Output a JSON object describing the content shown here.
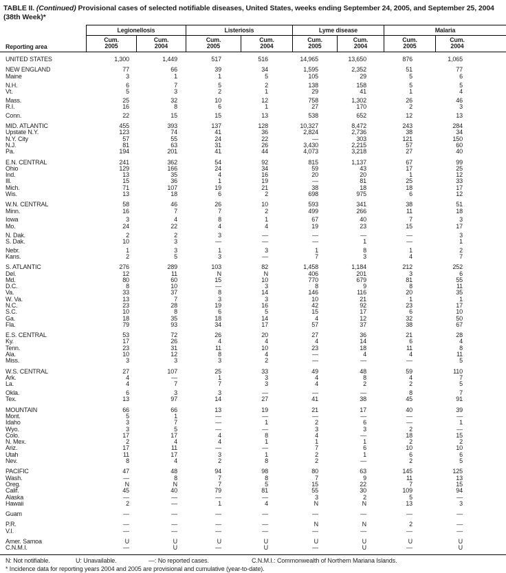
{
  "title": {
    "prefix": "TABLE II.",
    "continued": "(Continued)",
    "rest": "Provisional cases of selected notifiable diseases, United States, weeks ending September 24, 2005, and September 25, 2004 (38th Week)*"
  },
  "columns": {
    "reporting_area": "Reporting area",
    "groups": [
      {
        "label": "Legionellosis"
      },
      {
        "label": "Listeriosis"
      },
      {
        "label": "Lyme disease"
      },
      {
        "label": "Malaria"
      }
    ],
    "subs": [
      {
        "line1": "Cum.",
        "line2": "2005"
      },
      {
        "line1": "Cum.",
        "line2": "2004"
      },
      {
        "line1": "Cum.",
        "line2": "2005"
      },
      {
        "line1": "Cum.",
        "line2": "2004"
      },
      {
        "line1": "Cum.",
        "line2": "2005"
      },
      {
        "line1": "Cum.",
        "line2": "2004"
      },
      {
        "line1": "Cum.",
        "line2": "2005"
      },
      {
        "line1": "Cum.",
        "line2": "2004"
      }
    ]
  },
  "sections": [
    {
      "rows": [
        {
          "label": "UNITED STATES",
          "values": [
            "1,300",
            "1,449",
            "517",
            "516",
            "14,965",
            "13,650",
            "876",
            "1,065"
          ]
        }
      ]
    },
    {
      "rows": [
        {
          "label": "NEW ENGLAND",
          "values": [
            "77",
            "66",
            "39",
            "34",
            "1,595",
            "2,352",
            "51",
            "77"
          ]
        },
        {
          "label": "Maine",
          "values": [
            "3",
            "1",
            "1",
            "5",
            "105",
            "29",
            "5",
            "6"
          ]
        },
        {
          "label": "N.H.",
          "gap": true,
          "values": [
            "6",
            "7",
            "5",
            "2",
            "138",
            "158",
            "5",
            "5"
          ]
        },
        {
          "label": "Vt.",
          "values": [
            "5",
            "3",
            "2",
            "1",
            "29",
            "41",
            "1",
            "4"
          ]
        },
        {
          "label": "Mass.",
          "gap": true,
          "values": [
            "25",
            "32",
            "10",
            "12",
            "758",
            "1,302",
            "26",
            "46"
          ]
        },
        {
          "label": "R.I.",
          "values": [
            "16",
            "8",
            "6",
            "1",
            "27",
            "170",
            "2",
            "3"
          ]
        },
        {
          "label": "Conn.",
          "gap": true,
          "values": [
            "22",
            "15",
            "15",
            "13",
            "538",
            "652",
            "12",
            "13"
          ]
        }
      ]
    },
    {
      "rows": [
        {
          "label": "MID. ATLANTIC",
          "values": [
            "455",
            "393",
            "137",
            "128",
            "10,327",
            "8,472",
            "243",
            "284"
          ]
        },
        {
          "label": "Upstate N.Y.",
          "values": [
            "123",
            "74",
            "41",
            "36",
            "2,824",
            "2,736",
            "38",
            "34"
          ]
        },
        {
          "label": "N.Y. City",
          "values": [
            "57",
            "55",
            "24",
            "22",
            "—",
            "303",
            "121",
            "150"
          ]
        },
        {
          "label": "N.J.",
          "values": [
            "81",
            "63",
            "31",
            "26",
            "3,430",
            "2,215",
            "57",
            "60"
          ]
        },
        {
          "label": "Pa.",
          "values": [
            "194",
            "201",
            "41",
            "44",
            "4,073",
            "3,218",
            "27",
            "40"
          ]
        }
      ]
    },
    {
      "rows": [
        {
          "label": "E.N. CENTRAL",
          "values": [
            "241",
            "362",
            "54",
            "92",
            "815",
            "1,137",
            "67",
            "99"
          ]
        },
        {
          "label": "Ohio",
          "values": [
            "129",
            "166",
            "24",
            "34",
            "59",
            "43",
            "17",
            "25"
          ]
        },
        {
          "label": "Ind.",
          "values": [
            "13",
            "35",
            "4",
            "16",
            "20",
            "20",
            "1",
            "12"
          ]
        },
        {
          "label": "Ill.",
          "values": [
            "15",
            "36",
            "1",
            "19",
            "—",
            "81",
            "25",
            "33"
          ]
        },
        {
          "label": "Mich.",
          "values": [
            "71",
            "107",
            "19",
            "21",
            "38",
            "18",
            "18",
            "17"
          ]
        },
        {
          "label": "Wis.",
          "values": [
            "13",
            "18",
            "6",
            "2",
            "698",
            "975",
            "6",
            "12"
          ]
        }
      ]
    },
    {
      "rows": [
        {
          "label": "W.N. CENTRAL",
          "values": [
            "58",
            "46",
            "26",
            "10",
            "593",
            "341",
            "38",
            "51"
          ]
        },
        {
          "label": "Minn.",
          "values": [
            "16",
            "7",
            "7",
            "2",
            "499",
            "266",
            "11",
            "18"
          ]
        },
        {
          "label": "Iowa",
          "gap": true,
          "values": [
            "3",
            "4",
            "8",
            "1",
            "67",
            "40",
            "7",
            "3"
          ]
        },
        {
          "label": "Mo.",
          "values": [
            "24",
            "22",
            "4",
            "4",
            "19",
            "23",
            "15",
            "17"
          ]
        },
        {
          "label": "N. Dak.",
          "gap": true,
          "values": [
            "2",
            "2",
            "3",
            "—",
            "—",
            "—",
            "—",
            "3"
          ]
        },
        {
          "label": "S. Dak.",
          "values": [
            "10",
            "3",
            "—",
            "—",
            "—",
            "1",
            "—",
            "1"
          ]
        },
        {
          "label": "Nebr.",
          "gap": true,
          "values": [
            "1",
            "3",
            "1",
            "3",
            "1",
            "8",
            "1",
            "2"
          ]
        },
        {
          "label": "Kans.",
          "values": [
            "2",
            "5",
            "3",
            "—",
            "7",
            "3",
            "4",
            "7"
          ]
        }
      ]
    },
    {
      "rows": [
        {
          "label": "S. ATLANTIC",
          "values": [
            "276",
            "289",
            "103",
            "82",
            "1,458",
            "1,184",
            "212",
            "252"
          ]
        },
        {
          "label": "Del.",
          "values": [
            "12",
            "11",
            "N",
            "N",
            "406",
            "201",
            "3",
            "6"
          ]
        },
        {
          "label": "Md.",
          "values": [
            "80",
            "60",
            "15",
            "10",
            "770",
            "679",
            "81",
            "55"
          ]
        },
        {
          "label": "D.C.",
          "values": [
            "8",
            "10",
            "—",
            "3",
            "8",
            "9",
            "8",
            "11"
          ]
        },
        {
          "label": "Va.",
          "values": [
            "33",
            "37",
            "8",
            "14",
            "146",
            "116",
            "20",
            "35"
          ]
        },
        {
          "label": "W. Va.",
          "values": [
            "13",
            "7",
            "3",
            "3",
            "10",
            "21",
            "1",
            "1"
          ]
        },
        {
          "label": "N.C.",
          "values": [
            "23",
            "28",
            "19",
            "16",
            "42",
            "92",
            "23",
            "17"
          ]
        },
        {
          "label": "S.C.",
          "values": [
            "10",
            "8",
            "6",
            "5",
            "15",
            "17",
            "6",
            "10"
          ]
        },
        {
          "label": "Ga.",
          "values": [
            "18",
            "35",
            "18",
            "14",
            "4",
            "12",
            "32",
            "50"
          ]
        },
        {
          "label": "Fla.",
          "values": [
            "79",
            "93",
            "34",
            "17",
            "57",
            "37",
            "38",
            "67"
          ]
        }
      ]
    },
    {
      "rows": [
        {
          "label": "E.S. CENTRAL",
          "values": [
            "53",
            "72",
            "26",
            "20",
            "27",
            "36",
            "21",
            "28"
          ]
        },
        {
          "label": "Ky.",
          "values": [
            "17",
            "26",
            "4",
            "4",
            "4",
            "14",
            "6",
            "4"
          ]
        },
        {
          "label": "Tenn.",
          "values": [
            "23",
            "31",
            "11",
            "10",
            "23",
            "18",
            "11",
            "8"
          ]
        },
        {
          "label": "Ala.",
          "values": [
            "10",
            "12",
            "8",
            "4",
            "—",
            "4",
            "4",
            "11"
          ]
        },
        {
          "label": "Miss.",
          "values": [
            "3",
            "3",
            "3",
            "2",
            "—",
            "—",
            "—",
            "5"
          ]
        }
      ]
    },
    {
      "rows": [
        {
          "label": "W.S. CENTRAL",
          "values": [
            "27",
            "107",
            "25",
            "33",
            "49",
            "48",
            "59",
            "110"
          ]
        },
        {
          "label": "Ark.",
          "values": [
            "4",
            "—",
            "1",
            "3",
            "4",
            "8",
            "4",
            "7"
          ]
        },
        {
          "label": "La.",
          "values": [
            "4",
            "7",
            "7",
            "3",
            "4",
            "2",
            "2",
            "5"
          ]
        },
        {
          "label": "Okla.",
          "gap": true,
          "values": [
            "6",
            "3",
            "3",
            "—",
            "—",
            "—",
            "8",
            "7"
          ]
        },
        {
          "label": "Tex.",
          "values": [
            "13",
            "97",
            "14",
            "27",
            "41",
            "38",
            "45",
            "91"
          ]
        }
      ]
    },
    {
      "rows": [
        {
          "label": "MOUNTAIN",
          "values": [
            "66",
            "66",
            "13",
            "19",
            "21",
            "17",
            "40",
            "39"
          ]
        },
        {
          "label": "Mont.",
          "values": [
            "5",
            "1",
            "—",
            "—",
            "—",
            "—",
            "—",
            "—"
          ]
        },
        {
          "label": "Idaho",
          "values": [
            "3",
            "7",
            "—",
            "1",
            "2",
            "6",
            "—",
            "1"
          ]
        },
        {
          "label": "Wyo.",
          "values": [
            "3",
            "5",
            "—",
            "—",
            "3",
            "3",
            "2",
            "—"
          ]
        },
        {
          "label": "Colo.",
          "values": [
            "17",
            "17",
            "4",
            "8",
            "4",
            "—",
            "18",
            "15"
          ]
        },
        {
          "label": "N. Mex.",
          "values": [
            "2",
            "4",
            "4",
            "1",
            "1",
            "1",
            "2",
            "2"
          ]
        },
        {
          "label": "Ariz.",
          "values": [
            "17",
            "11",
            "—",
            "—",
            "7",
            "6",
            "10",
            "10"
          ]
        },
        {
          "label": "Utah",
          "values": [
            "11",
            "17",
            "3",
            "1",
            "2",
            "1",
            "6",
            "6"
          ]
        },
        {
          "label": "Nev.",
          "values": [
            "8",
            "4",
            "2",
            "8",
            "2",
            "—",
            "2",
            "5"
          ]
        }
      ]
    },
    {
      "rows": [
        {
          "label": "PACIFIC",
          "values": [
            "47",
            "48",
            "94",
            "98",
            "80",
            "63",
            "145",
            "125"
          ]
        },
        {
          "label": "Wash.",
          "values": [
            "—",
            "8",
            "7",
            "8",
            "7",
            "9",
            "11",
            "13"
          ]
        },
        {
          "label": "Oreg.",
          "values": [
            "N",
            "N",
            "7",
            "5",
            "15",
            "22",
            "7",
            "15"
          ]
        },
        {
          "label": "Calif.",
          "values": [
            "45",
            "40",
            "79",
            "81",
            "55",
            "30",
            "109",
            "94"
          ]
        },
        {
          "label": "Alaska",
          "values": [
            "—",
            "—",
            "—",
            "—",
            "3",
            "2",
            "5",
            "—"
          ]
        },
        {
          "label": "Hawaii",
          "values": [
            "2",
            "—",
            "1",
            "4",
            "N",
            "N",
            "13",
            "3"
          ]
        }
      ]
    },
    {
      "rows": [
        {
          "label": "Guam",
          "values": [
            "—",
            "—",
            "—",
            "—",
            "—",
            "—",
            "—",
            "—"
          ]
        }
      ]
    },
    {
      "rows": [
        {
          "label": "P.R.",
          "values": [
            "—",
            "—",
            "—",
            "—",
            "N",
            "N",
            "2",
            "—"
          ]
        },
        {
          "label": "V.I.",
          "values": [
            "—",
            "—",
            "—",
            "—",
            "—",
            "—",
            "—",
            "—"
          ]
        }
      ]
    },
    {
      "rows": [
        {
          "label": "Amer. Samoa",
          "values": [
            "U",
            "U",
            "U",
            "U",
            "U",
            "U",
            "U",
            "U"
          ]
        },
        {
          "label": "C.N.M.I.",
          "values": [
            "—",
            "U",
            "—",
            "U",
            "—",
            "U",
            "—",
            "U"
          ]
        }
      ]
    }
  ],
  "footnotes": {
    "items": [
      "N: Not notifiable.",
      "U: Unavailable.",
      "—: No reported cases.",
      "C.N.M.I.: Commonwealth of Northern Mariana Islands."
    ],
    "star": "* Incidence data for reporting years 2004 and 2005 are provisional and cumulative (year-to-date)."
  }
}
